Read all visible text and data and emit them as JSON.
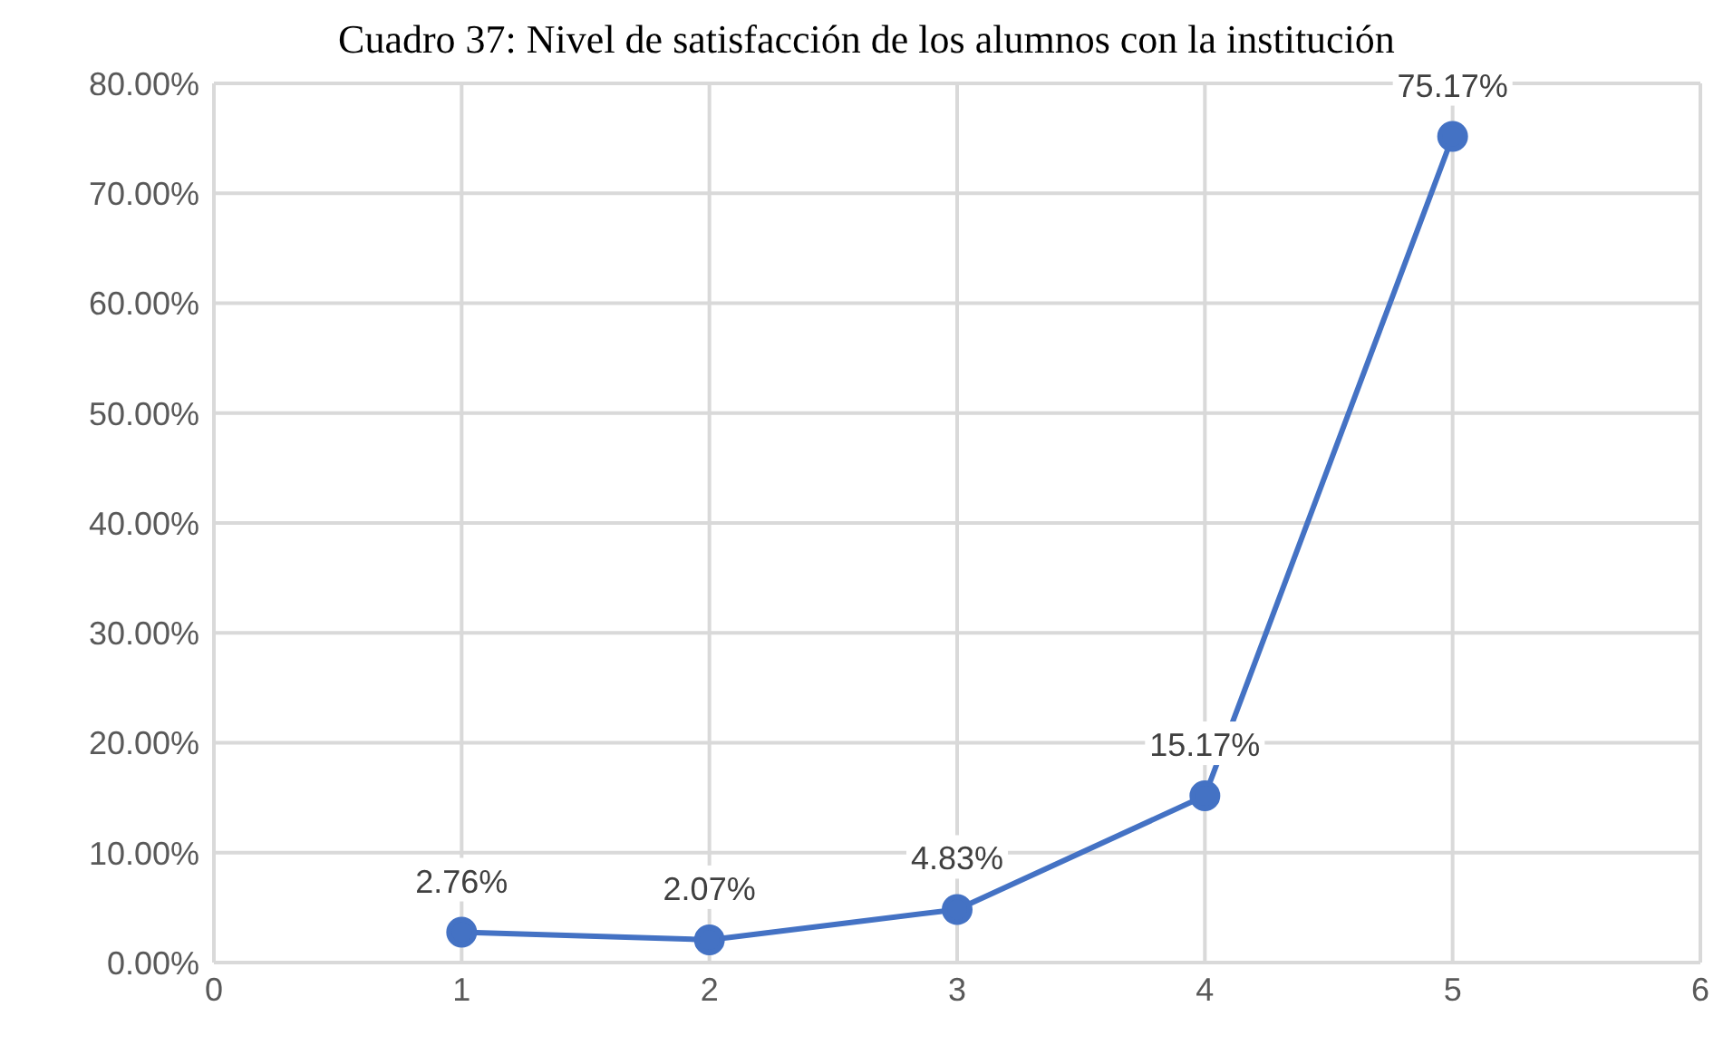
{
  "chart_data": {
    "type": "line",
    "title": "Cuadro 37: Nivel de satisfacción de los alumnos con la institución",
    "x": [
      1,
      2,
      3,
      4,
      5
    ],
    "series": [
      {
        "color": "#4472c4",
        "values": [
          2.76,
          2.07,
          4.83,
          15.17,
          75.17
        ],
        "value_labels": [
          "2.76%",
          "2.07%",
          "4.83%",
          "15.17%",
          "75.17%"
        ]
      }
    ],
    "xlim": [
      0,
      6
    ],
    "xticks": [
      0,
      1,
      2,
      3,
      4,
      5,
      6
    ],
    "ylim": [
      0,
      80
    ],
    "yticks": [
      {
        "value": 0,
        "label": "0.00%"
      },
      {
        "value": 10,
        "label": "10.00%"
      },
      {
        "value": 20,
        "label": "20.00%"
      },
      {
        "value": 30,
        "label": "30.00%"
      },
      {
        "value": 40,
        "label": "40.00%"
      },
      {
        "value": 50,
        "label": "50.00%"
      },
      {
        "value": 60,
        "label": "60.00%"
      },
      {
        "value": 70,
        "label": "70.00%"
      },
      {
        "value": 80,
        "label": "80.00%"
      }
    ],
    "grid": true,
    "marker": "circle",
    "line_style": "solid"
  }
}
